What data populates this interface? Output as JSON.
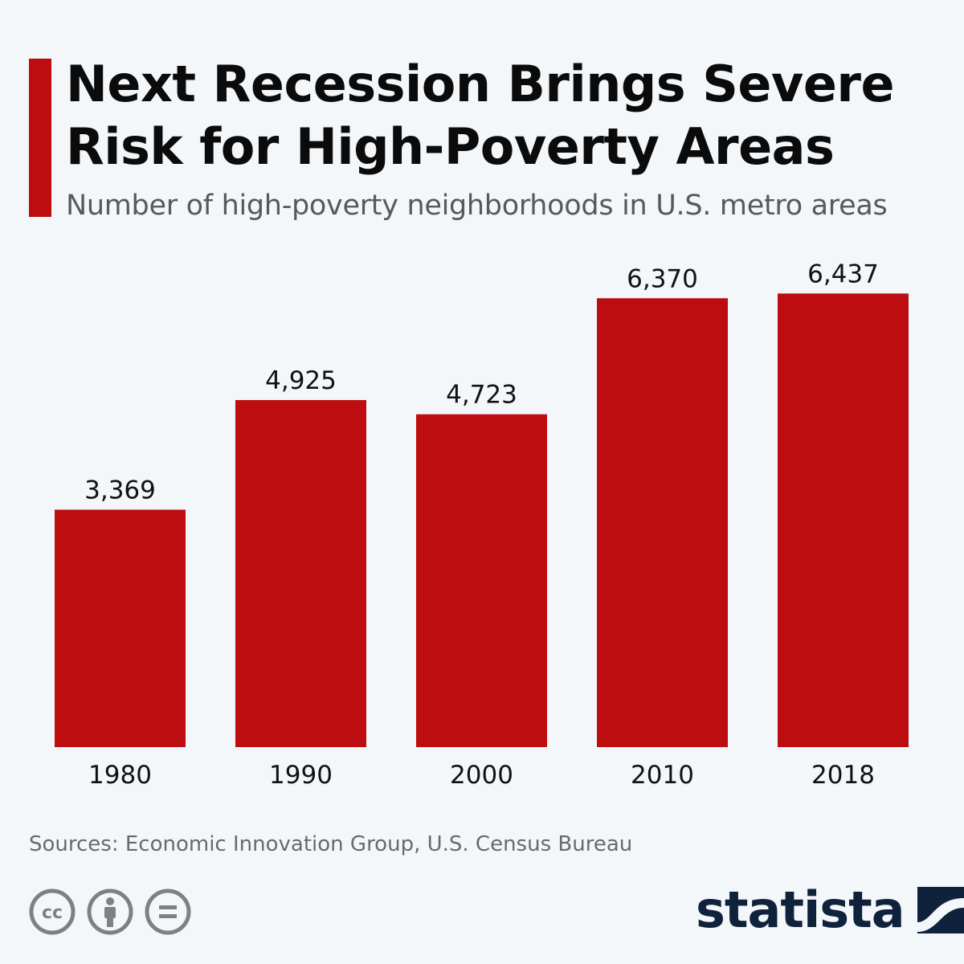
{
  "header": {
    "title": "Next Recession Brings Severe Risk for High-Poverty Areas",
    "subtitle": "Number of high-poverty neighborhoods in U.S. metro areas",
    "accent_color": "#bd0d11"
  },
  "chart_data": {
    "type": "bar",
    "categories": [
      "1980",
      "1990",
      "2000",
      "2010",
      "2018"
    ],
    "values": [
      3369,
      4925,
      4723,
      6370,
      6437
    ],
    "value_labels": [
      "3,369",
      "4,925",
      "4,723",
      "6,370",
      "6,437"
    ],
    "title": "Next Recession Brings Severe Risk for High-Poverty Areas",
    "subtitle": "Number of high-poverty neighborhoods in U.S. metro areas",
    "xlabel": "",
    "ylabel": "",
    "ylim": [
      0,
      7000
    ],
    "grid": false,
    "legend": "none",
    "bar_color": "#bd0d11"
  },
  "footer": {
    "source": "Sources: Economic Innovation Group, U.S. Census Bureau",
    "license_icons": [
      "cc-icon",
      "attribution-icon",
      "no-derivatives-icon"
    ],
    "icon_color": "#7b8187",
    "brand": "statista",
    "brand_color": "#10223b"
  }
}
